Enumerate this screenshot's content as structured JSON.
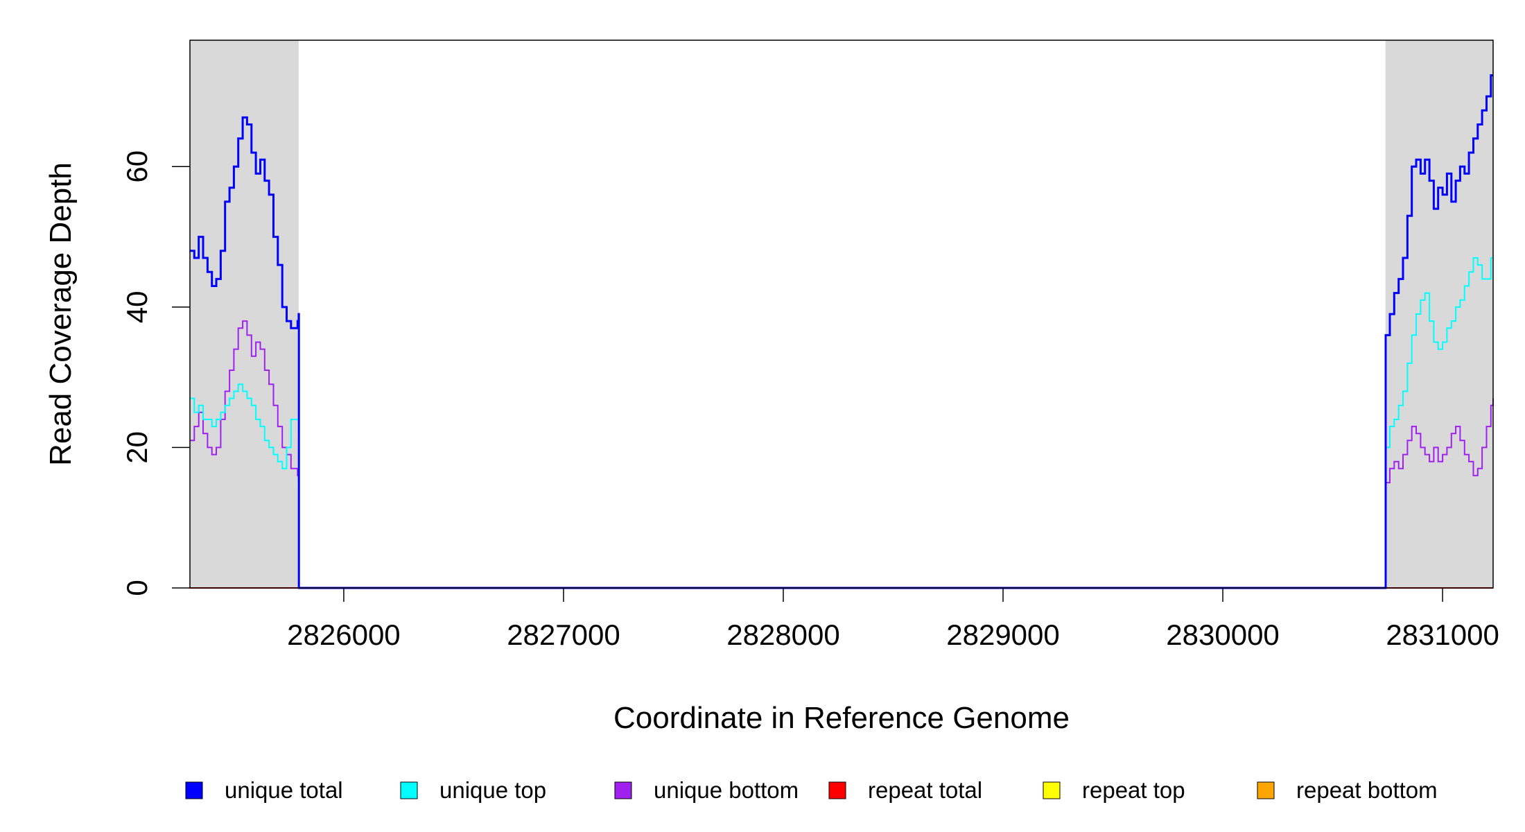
{
  "chart_data": {
    "type": "line",
    "xlabel": "Coordinate in Reference Genome",
    "ylabel": "Read Coverage Depth",
    "xlim": [
      2825300,
      2831230
    ],
    "ylim": [
      0,
      78
    ],
    "x_ticks": [
      2826000,
      2827000,
      2828000,
      2829000,
      2830000,
      2831000
    ],
    "x_tick_labels": [
      "2826000",
      "2827000",
      "2828000",
      "2829000",
      "2830000",
      "2831000"
    ],
    "y_ticks": [
      0,
      20,
      40,
      60
    ],
    "y_tick_labels": [
      "0",
      "20",
      "40",
      "60"
    ],
    "shaded_regions": [
      [
        2825300,
        2825795
      ],
      [
        2830740,
        2831230
      ]
    ],
    "shade_color": "#d9d9d9",
    "legend": {
      "placement": "bottom",
      "entries": [
        {
          "label": "unique total",
          "color": "#0000ff"
        },
        {
          "label": "unique top",
          "color": "#00ffff"
        },
        {
          "label": "unique bottom",
          "color": "#a020f0"
        },
        {
          "label": "repeat total",
          "color": "#ff0000"
        },
        {
          "label": "repeat top",
          "color": "#ffff00"
        },
        {
          "label": "repeat bottom",
          "color": "#ffa500"
        }
      ]
    },
    "series": [
      {
        "name": "unique total",
        "color": "#0000ff",
        "x": [
          2825300,
          2825320,
          2825340,
          2825360,
          2825380,
          2825400,
          2825420,
          2825440,
          2825460,
          2825480,
          2825500,
          2825520,
          2825540,
          2825560,
          2825580,
          2825600,
          2825620,
          2825640,
          2825660,
          2825680,
          2825700,
          2825720,
          2825740,
          2825760,
          2825790,
          2825795,
          2825796,
          2830740,
          2830741,
          2830760,
          2830780,
          2830800,
          2830820,
          2830840,
          2830860,
          2830880,
          2830900,
          2830920,
          2830940,
          2830960,
          2830980,
          2831000,
          2831020,
          2831040,
          2831060,
          2831080,
          2831100,
          2831120,
          2831140,
          2831160,
          2831180,
          2831200,
          2831220,
          2831230
        ],
        "y": [
          48,
          47,
          50,
          47,
          45,
          43,
          44,
          48,
          55,
          57,
          60,
          64,
          67,
          66,
          62,
          59,
          61,
          58,
          56,
          50,
          46,
          40,
          38,
          37,
          38,
          39,
          0,
          0,
          36,
          39,
          42,
          44,
          47,
          53,
          60,
          61,
          59,
          61,
          58,
          54,
          57,
          56,
          59,
          55,
          58,
          60,
          59,
          62,
          64,
          66,
          68,
          70,
          73,
          73
        ]
      },
      {
        "name": "unique top",
        "color": "#00ffff",
        "x": [
          2825300,
          2825320,
          2825340,
          2825360,
          2825380,
          2825400,
          2825420,
          2825440,
          2825460,
          2825480,
          2825500,
          2825520,
          2825540,
          2825560,
          2825580,
          2825600,
          2825620,
          2825640,
          2825660,
          2825680,
          2825700,
          2825720,
          2825740,
          2825760,
          2825790,
          2825795,
          2825796,
          2830740,
          2830741,
          2830760,
          2830780,
          2830800,
          2830820,
          2830840,
          2830860,
          2830880,
          2830900,
          2830920,
          2830940,
          2830960,
          2830980,
          2831000,
          2831020,
          2831040,
          2831060,
          2831080,
          2831100,
          2831120,
          2831140,
          2831160,
          2831180,
          2831200,
          2831220,
          2831230
        ],
        "y": [
          27,
          25,
          26,
          24,
          24,
          23,
          24,
          25,
          26,
          27,
          28,
          29,
          28,
          27,
          26,
          24,
          23,
          21,
          20,
          19,
          18,
          17,
          20,
          24,
          24,
          22,
          0,
          0,
          20,
          23,
          24,
          26,
          28,
          32,
          36,
          39,
          41,
          42,
          38,
          35,
          34,
          35,
          37,
          38,
          40,
          41,
          43,
          45,
          47,
          46,
          44,
          44,
          47,
          47
        ]
      },
      {
        "name": "unique bottom",
        "color": "#a020f0",
        "x": [
          2825300,
          2825320,
          2825340,
          2825360,
          2825380,
          2825400,
          2825420,
          2825440,
          2825460,
          2825480,
          2825500,
          2825520,
          2825540,
          2825560,
          2825580,
          2825600,
          2825620,
          2825640,
          2825660,
          2825680,
          2825700,
          2825720,
          2825740,
          2825760,
          2825790,
          2825795,
          2825796,
          2830740,
          2830741,
          2830760,
          2830780,
          2830800,
          2830820,
          2830840,
          2830860,
          2830880,
          2830900,
          2830920,
          2830940,
          2830960,
          2830980,
          2831000,
          2831020,
          2831040,
          2831060,
          2831080,
          2831100,
          2831120,
          2831140,
          2831160,
          2831180,
          2831200,
          2831220,
          2831230
        ],
        "y": [
          21,
          23,
          25,
          22,
          20,
          19,
          20,
          24,
          28,
          31,
          34,
          37,
          38,
          36,
          33,
          35,
          34,
          31,
          29,
          26,
          23,
          20,
          19,
          17,
          16,
          15,
          0,
          0,
          15,
          17,
          18,
          17,
          19,
          21,
          23,
          22,
          20,
          19,
          18,
          20,
          18,
          19,
          20,
          22,
          23,
          21,
          19,
          18,
          16,
          17,
          20,
          23,
          26,
          27
        ]
      },
      {
        "name": "repeat total",
        "color": "#ff0000",
        "x": [
          2825300,
          2831230
        ],
        "y": [
          0,
          0
        ]
      },
      {
        "name": "repeat top",
        "color": "#ffff00",
        "x": [
          2825300,
          2831230
        ],
        "y": [
          0,
          0
        ]
      },
      {
        "name": "repeat bottom",
        "color": "#ffa500",
        "x": [
          2825300,
          2831230
        ],
        "y": [
          0,
          0
        ]
      }
    ]
  }
}
